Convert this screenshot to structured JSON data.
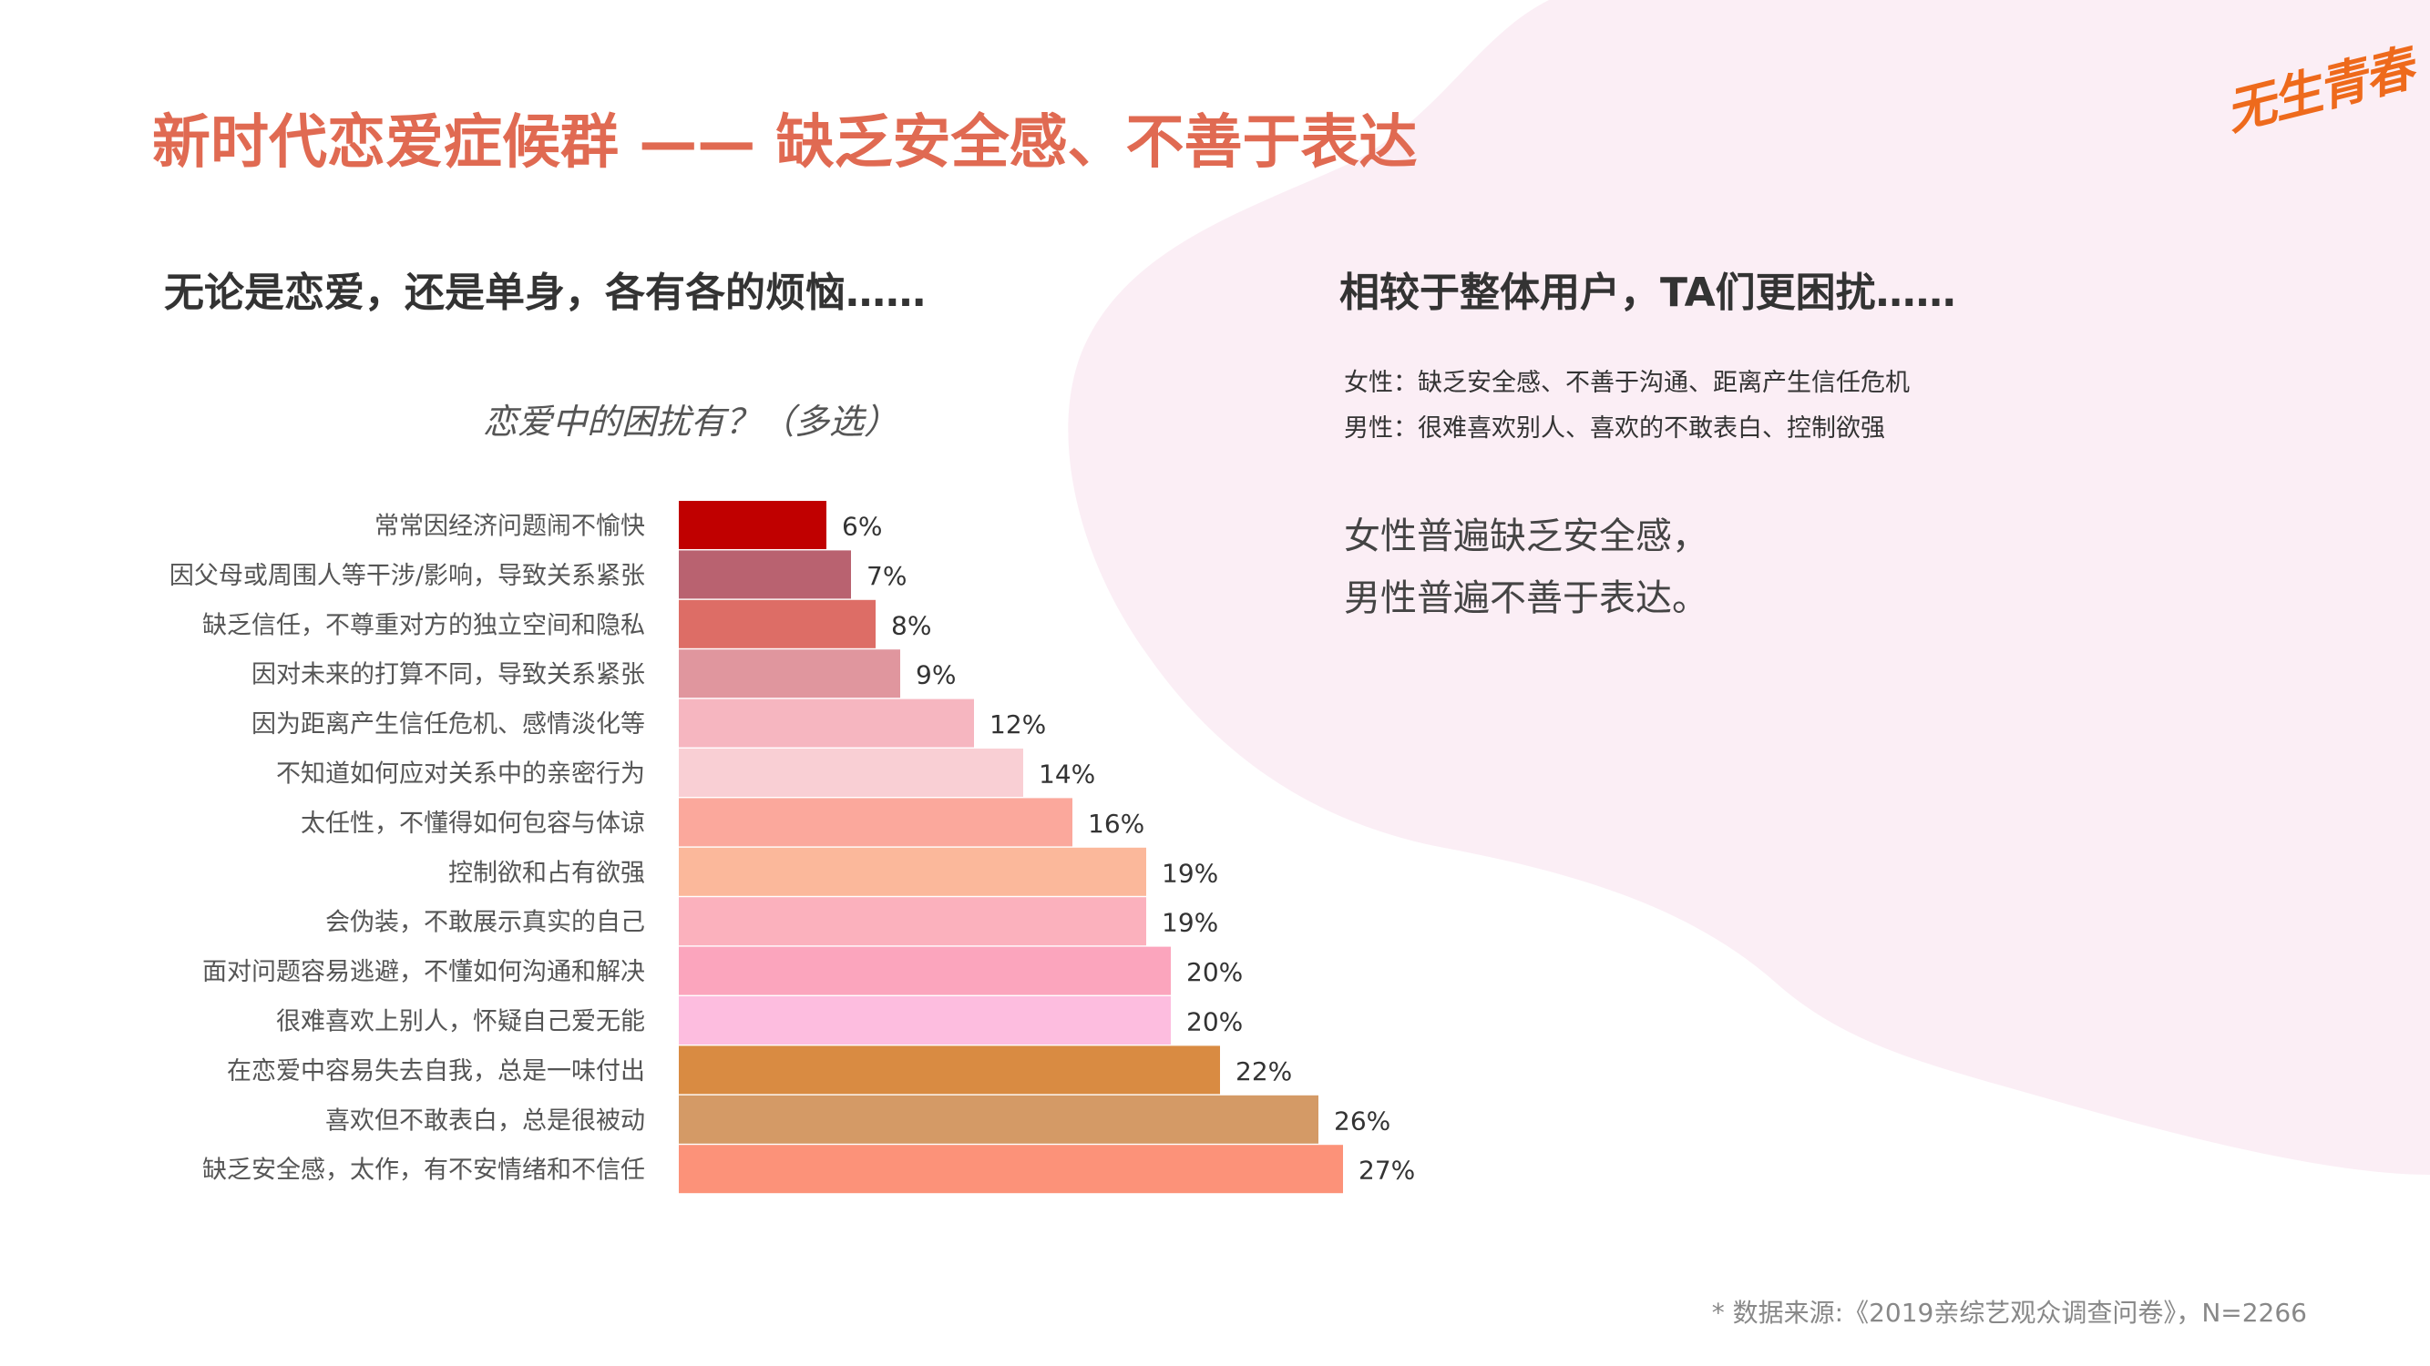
{
  "header": {
    "title": "新时代恋爱症候群 —— 缺乏安全感、不善于表达",
    "logo_text": "无生青春"
  },
  "left": {
    "subtitle": "无论是恋爱，还是单身，各有各的烦恼……"
  },
  "right": {
    "subtitle": "相较于整体用户，TA们更困扰……",
    "female_line": "女性：缺乏安全感、不善于沟通、距离产生信任危机",
    "male_line": "男性：很难喜欢别人、喜欢的不敢表白、控制欲强",
    "conclusion_1": "女性普遍缺乏安全感，",
    "conclusion_2": "男性普遍不善于表达。"
  },
  "footer": {
    "source": "* 数据来源:《2019亲综艺观众调查问卷》，N=2266"
  },
  "colors": {
    "title": "#e06a52",
    "background_blob": "#fbeef5",
    "logo": "#ee6a1c"
  },
  "chart_data": {
    "type": "bar",
    "orientation": "horizontal",
    "title": "恋爱中的困扰有？（多选）",
    "unit": "%",
    "categories": [
      "常常因经济问题闹不愉快",
      "因父母或周围人等干涉/影响，导致关系紧张",
      "缺乏信任，不尊重对方的独立空间和隐私",
      "因对未来的打算不同，导致关系紧张",
      "因为距离产生信任危机、感情淡化等",
      "不知道如何应对关系中的亲密行为",
      "太任性，不懂得如何包容与体谅",
      "控制欲和占有欲强",
      "会伪装，不敢展示真实的自己",
      "面对问题容易逃避，不懂如何沟通和解决",
      "很难喜欢上别人，怀疑自己爱无能",
      "在恋爱中容易失去自我，总是一味付出",
      "喜欢但不敢表白，总是很被动",
      "缺乏安全感，太作，有不安情绪和不信任"
    ],
    "values": [
      6,
      7,
      8,
      9,
      12,
      14,
      16,
      19,
      19,
      20,
      20,
      22,
      26,
      27
    ],
    "labels": [
      "6%",
      "7%",
      "8%",
      "9%",
      "12%",
      "14%",
      "16%",
      "19%",
      "19%",
      "20%",
      "20%",
      "22%",
      "26%",
      "27%"
    ],
    "bar_colors": [
      "#c00000",
      "#b96270",
      "#dd6d66",
      "#e0969e",
      "#f6b6c0",
      "#f9cfd4",
      "#fba89c",
      "#fbb89b",
      "#fbb1bd",
      "#fba5bd",
      "#fdbddf",
      "#d98b42",
      "#d49a66",
      "#fc9279"
    ]
  }
}
